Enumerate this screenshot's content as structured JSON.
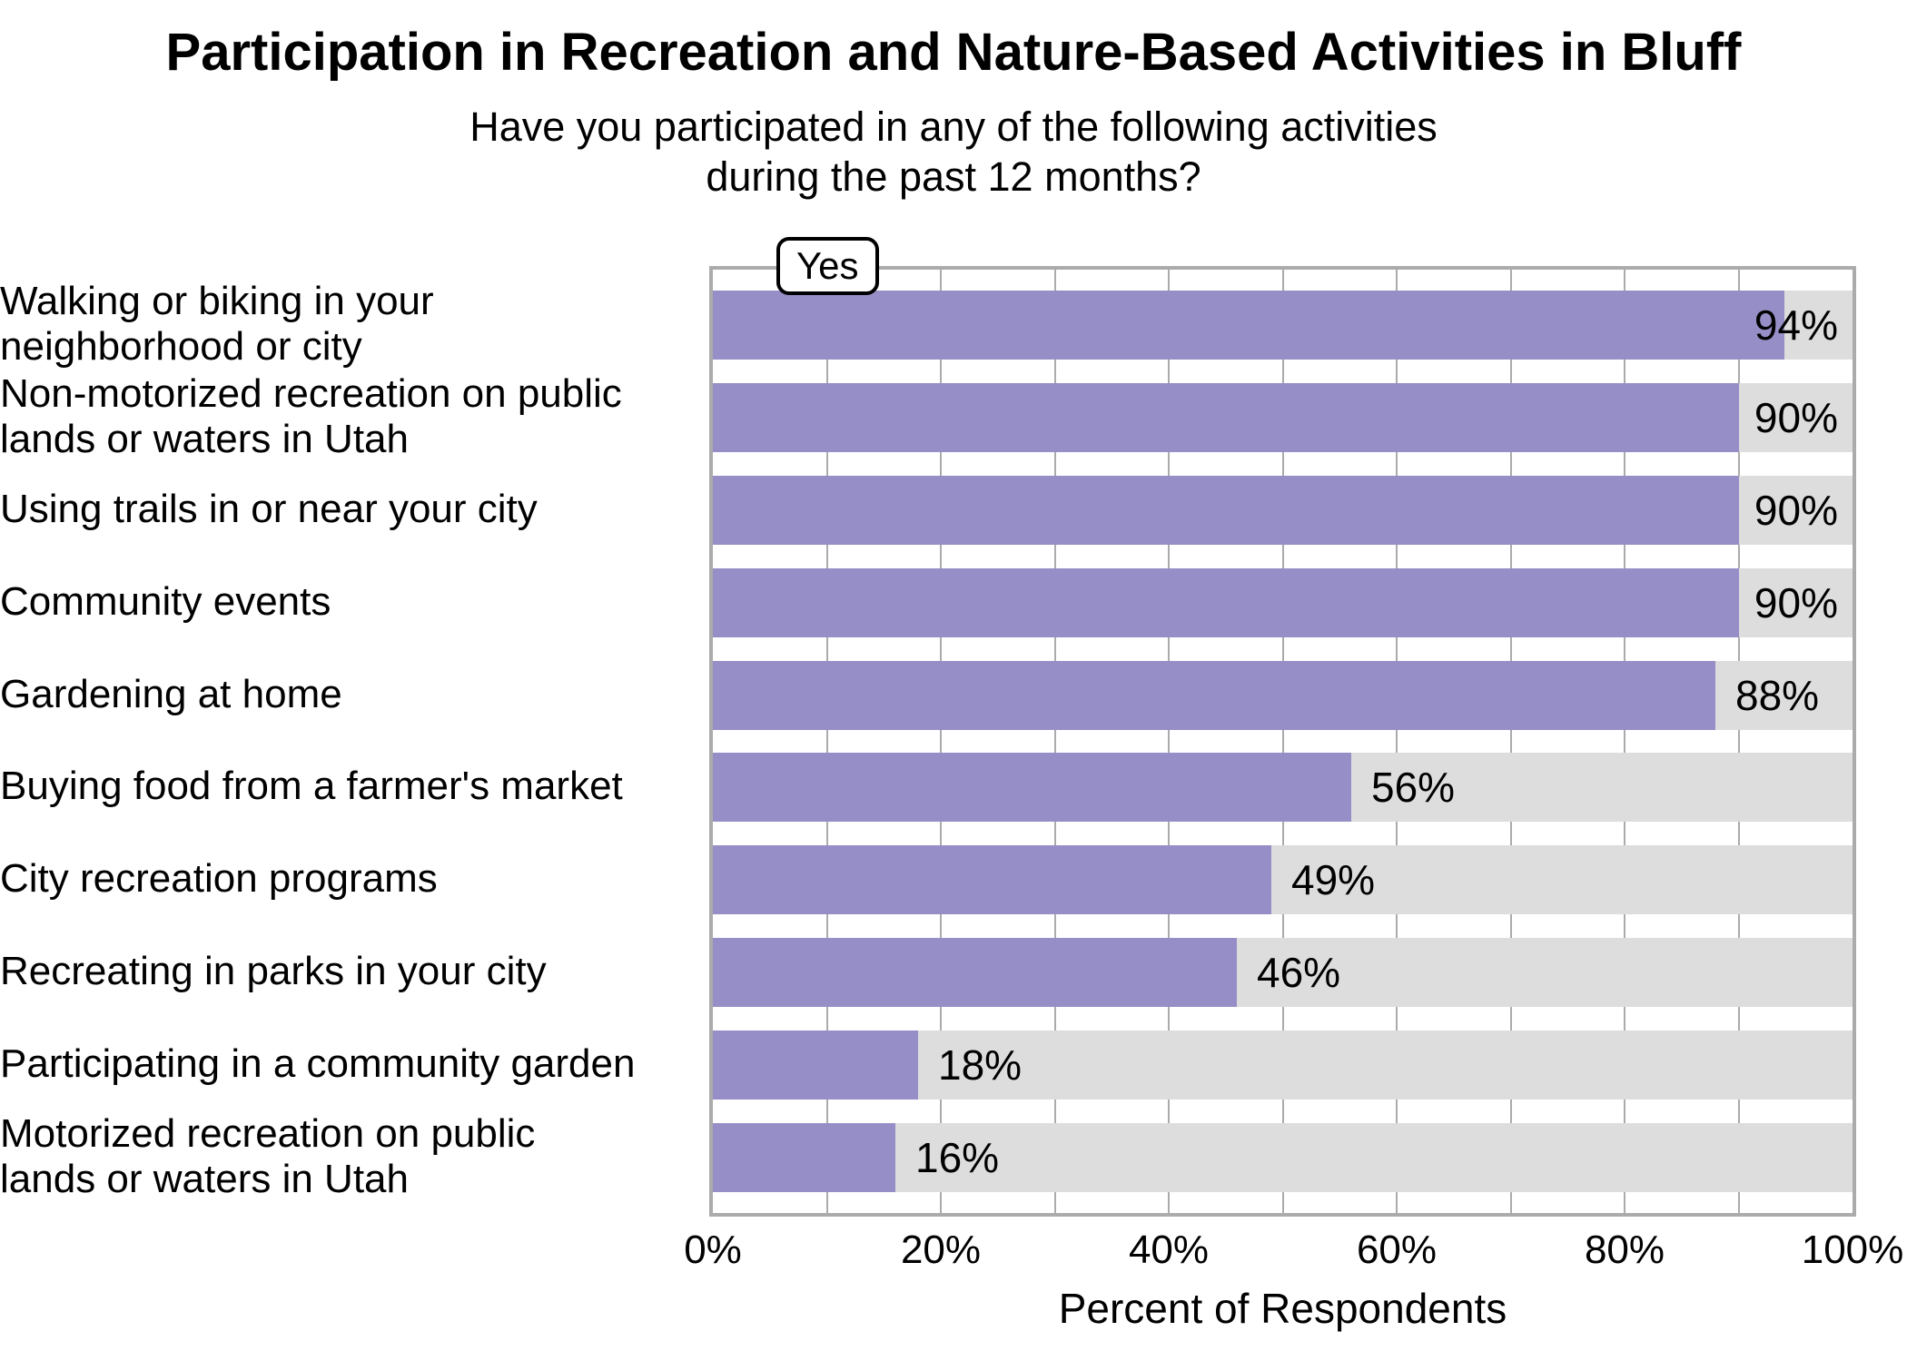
{
  "chart_data": {
    "type": "bar",
    "orientation": "horizontal",
    "title": "Participation in Recreation and Nature-Based Activities in Bluff",
    "subtitle_lines": [
      "Have you participated in any of the following activities",
      "during the past 12 months?"
    ],
    "legend": {
      "label": "Yes",
      "position": "top-left-inside-panel"
    },
    "xlabel": "Percent of Respondents",
    "xlim": [
      0,
      100
    ],
    "grid_interval": 10,
    "grid_on": true,
    "x_ticks": [
      {
        "value": 0,
        "label": "0%"
      },
      {
        "value": 20,
        "label": "20%"
      },
      {
        "value": 40,
        "label": "40%"
      },
      {
        "value": 60,
        "label": "60%"
      },
      {
        "value": 80,
        "label": "80%"
      },
      {
        "value": 100,
        "label": "100%"
      }
    ],
    "categories": [
      {
        "label_lines": [
          "Walking or biking in your",
          "neighborhood or city"
        ],
        "value": 94,
        "value_label": "94%"
      },
      {
        "label_lines": [
          "Non-motorized recreation on public",
          "lands or waters in Utah"
        ],
        "value": 90,
        "value_label": "90%"
      },
      {
        "label_lines": [
          "Using trails in or near your city"
        ],
        "value": 90,
        "value_label": "90%"
      },
      {
        "label_lines": [
          "Community events"
        ],
        "value": 90,
        "value_label": "90%"
      },
      {
        "label_lines": [
          "Gardening at home"
        ],
        "value": 88,
        "value_label": "88%"
      },
      {
        "label_lines": [
          "Buying food from a farmer's market"
        ],
        "value": 56,
        "value_label": "56%"
      },
      {
        "label_lines": [
          "City recreation programs"
        ],
        "value": 49,
        "value_label": "49%"
      },
      {
        "label_lines": [
          "Recreating in parks in your city"
        ],
        "value": 46,
        "value_label": "46%"
      },
      {
        "label_lines": [
          "Participating in a community garden"
        ],
        "value": 18,
        "value_label": "18%"
      },
      {
        "label_lines": [
          "Motorized recreation on public",
          "lands or waters in Utah"
        ],
        "value": 16,
        "value_label": "16%"
      }
    ],
    "colors": {
      "bar": "#968ec6",
      "track": "#dddddd",
      "grid": "#ababab",
      "panel_border": "#ababab",
      "text": "#000000",
      "legend_border": "#000000",
      "background": "#ffffff"
    }
  }
}
